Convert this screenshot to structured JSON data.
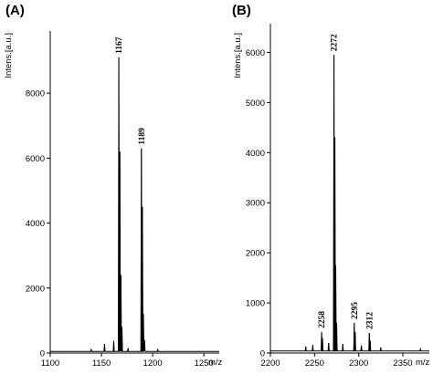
{
  "chart_data": [
    {
      "type": "line",
      "panel_label": "(A)",
      "ylabel": "Intens.[a.u.]",
      "xlabel": "m/z",
      "xlim": [
        1100,
        1265
      ],
      "ylim": [
        0,
        9800
      ],
      "xticks": [
        1100,
        1150,
        1200,
        1250
      ],
      "yticks": [
        0,
        2000,
        4000,
        6000,
        8000
      ],
      "baseline": 50,
      "peaks": [
        {
          "mz": 1140,
          "intensity": 120
        },
        {
          "mz": 1153,
          "intensity": 280
        },
        {
          "mz": 1162,
          "intensity": 380
        },
        {
          "mz": 1167,
          "intensity": 9100,
          "label": "1167"
        },
        {
          "mz": 1168,
          "intensity": 6200
        },
        {
          "mz": 1169,
          "intensity": 2400
        },
        {
          "mz": 1170,
          "intensity": 800
        },
        {
          "mz": 1176,
          "intensity": 150
        },
        {
          "mz": 1189,
          "intensity": 6300,
          "label": "1189"
        },
        {
          "mz": 1190,
          "intensity": 4500
        },
        {
          "mz": 1191,
          "intensity": 1200
        },
        {
          "mz": 1192,
          "intensity": 400
        },
        {
          "mz": 1205,
          "intensity": 120
        }
      ]
    },
    {
      "type": "line",
      "panel_label": "(B)",
      "ylabel": "Intens.[a.u.]",
      "xlabel": "m/z",
      "xlim": [
        2200,
        2380
      ],
      "ylim": [
        0,
        6500
      ],
      "xticks": [
        2200,
        2250,
        2300,
        2350
      ],
      "yticks": [
        0,
        1000,
        2000,
        3000,
        4000,
        5000,
        6000
      ],
      "baseline": 40,
      "peaks": [
        {
          "mz": 2240,
          "intensity": 130
        },
        {
          "mz": 2248,
          "intensity": 160
        },
        {
          "mz": 2258,
          "intensity": 420,
          "label": "2258"
        },
        {
          "mz": 2259,
          "intensity": 300
        },
        {
          "mz": 2266,
          "intensity": 200
        },
        {
          "mz": 2272,
          "intensity": 5950,
          "label": "2272"
        },
        {
          "mz": 2273,
          "intensity": 4300
        },
        {
          "mz": 2274,
          "intensity": 1750
        },
        {
          "mz": 2275,
          "intensity": 600
        },
        {
          "mz": 2282,
          "intensity": 180
        },
        {
          "mz": 2295,
          "intensity": 600,
          "label": "2295"
        },
        {
          "mz": 2296,
          "intensity": 420
        },
        {
          "mz": 2303,
          "intensity": 150
        },
        {
          "mz": 2312,
          "intensity": 400,
          "label": "2312"
        },
        {
          "mz": 2313,
          "intensity": 250
        },
        {
          "mz": 2325,
          "intensity": 110
        },
        {
          "mz": 2370,
          "intensity": 80
        }
      ]
    }
  ]
}
